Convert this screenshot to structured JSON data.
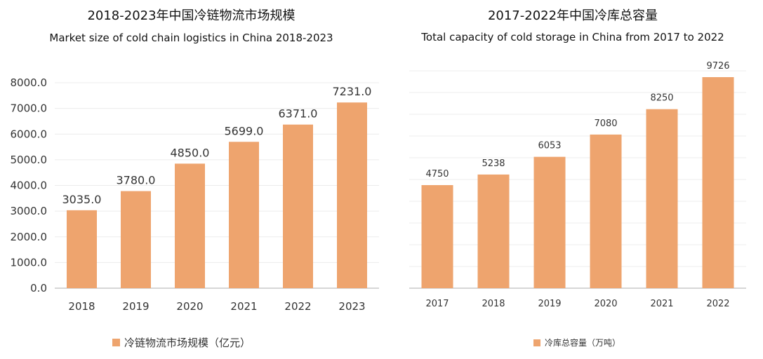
{
  "colors": {
    "bar": "#EEA46E",
    "grid": "#ececec",
    "axis": "#bdbdbd",
    "text": "#333333"
  },
  "chart_data": [
    {
      "type": "bar",
      "title": "2018-2023年中国冷链物流市场规模",
      "subtitle": "Market size of cold chain logistics in China 2018-2023",
      "categories": [
        "2018",
        "2019",
        "2020",
        "2021",
        "2022",
        "2023"
      ],
      "series": [
        {
          "name": "冷链物流市场规模（亿元）",
          "values": [
            3035.0,
            3780.0,
            4850.0,
            5699.0,
            6371.0,
            7231.0
          ]
        }
      ],
      "data_labels": [
        "3035.0",
        "3780.0",
        "4850.0",
        "5699.0",
        "6371.0",
        "7231.0"
      ],
      "y_ticks": [
        "0.0",
        "1000.0",
        "2000.0",
        "3000.0",
        "4000.0",
        "5000.0",
        "6000.0",
        "7000.0",
        "8000.0"
      ],
      "ylim": [
        0,
        8000
      ],
      "grid": true,
      "legend_position": "bottom"
    },
    {
      "type": "bar",
      "title": "2017-2022年中国冷库总容量",
      "subtitle": "Total capacity of cold storage in China from 2017 to 2022",
      "categories": [
        "2017",
        "2018",
        "2019",
        "2020",
        "2021",
        "2022"
      ],
      "series": [
        {
          "name": "冷库总容量（万吨）",
          "values": [
            4750,
            5238,
            6053,
            7080,
            8250,
            9726
          ]
        }
      ],
      "data_labels": [
        "4750",
        "5238",
        "6053",
        "7080",
        "8250",
        "9726"
      ],
      "y_axis_visible": false,
      "grid": true,
      "legend_position": "bottom"
    }
  ]
}
